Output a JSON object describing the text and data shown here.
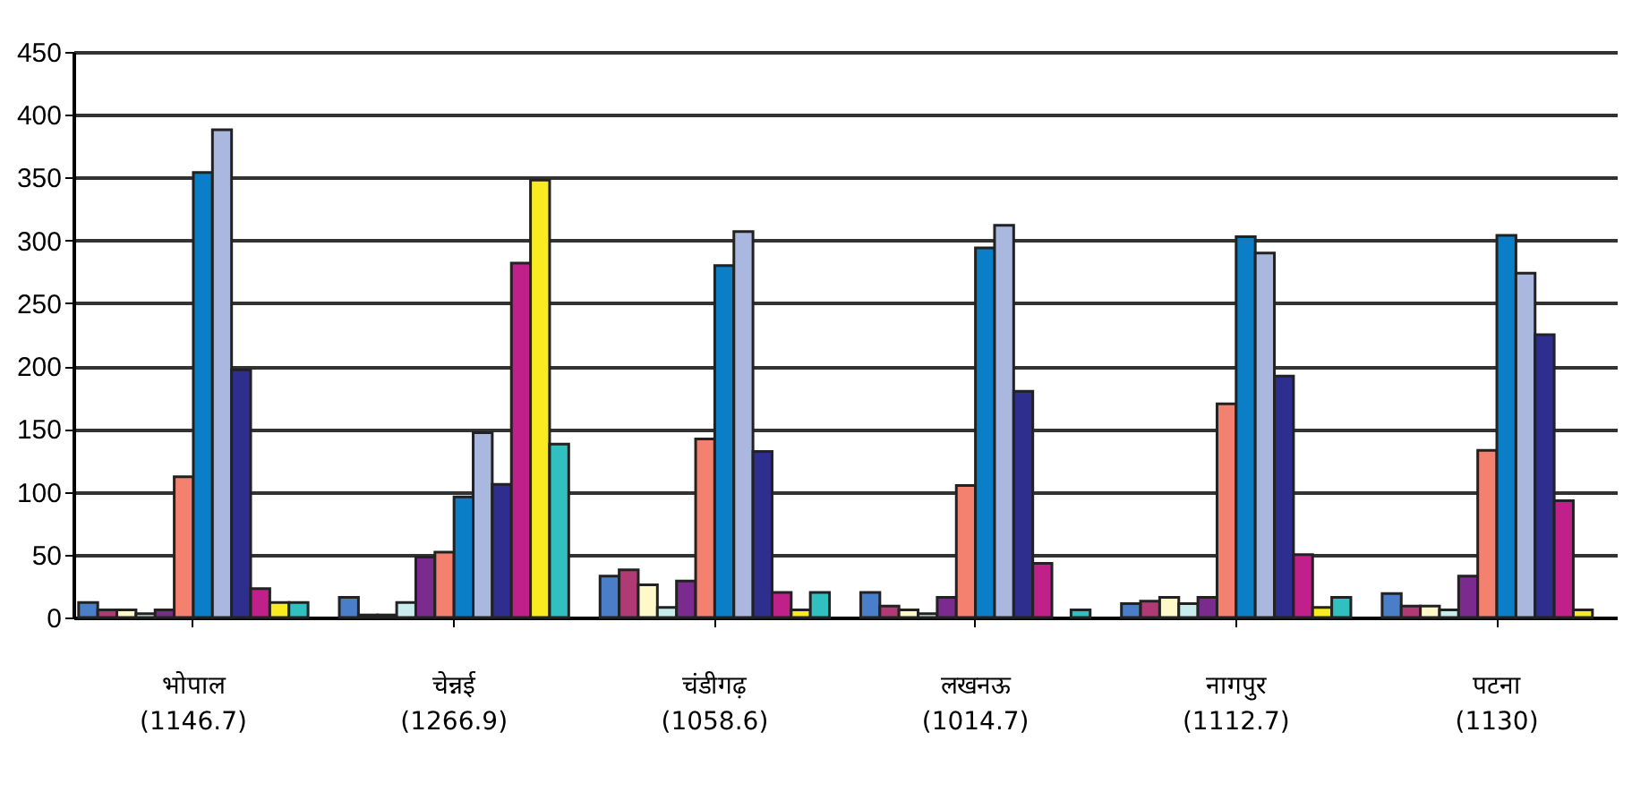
{
  "chart_data": {
    "type": "bar",
    "categories": [
      "भोपाल\n(1146.7)",
      "चेन्नई\n(1266.9)",
      "चंडीगढ़\n(1058.6)",
      "लखनऊ\n(1014.7)",
      "नागपुर\n(1112.7)",
      "पटना\n(1130)"
    ],
    "series": [
      {
        "color": "#4a7ec8",
        "values": [
          12,
          16,
          33,
          20,
          11,
          19
        ]
      },
      {
        "color": "#b03a74",
        "values": [
          6,
          2,
          38,
          9,
          13,
          9
        ]
      },
      {
        "color": "#fff8c8",
        "values": [
          6,
          2,
          26,
          6,
          16,
          9
        ]
      },
      {
        "color": "#c8ecec",
        "values": [
          3,
          12,
          8,
          3,
          11,
          6
        ]
      },
      {
        "color": "#7b2a8e",
        "values": [
          6,
          48,
          29,
          16,
          16,
          33
        ]
      },
      {
        "color": "#f48070",
        "values": [
          112,
          52,
          142,
          105,
          170,
          133
        ]
      },
      {
        "color": "#0a7ec6",
        "values": [
          354,
          96,
          280,
          294,
          303,
          304
        ]
      },
      {
        "color": "#aab8e0",
        "values": [
          388,
          147,
          307,
          312,
          290,
          274
        ]
      },
      {
        "color": "#2e2e8e",
        "values": [
          197,
          106,
          132,
          180,
          192,
          225
        ]
      },
      {
        "color": "#c0208a",
        "values": [
          23,
          282,
          20,
          43,
          50,
          93
        ]
      },
      {
        "color": "#f8ec20",
        "values": [
          12,
          348,
          6,
          null,
          8,
          6
        ]
      },
      {
        "color": "#30c0c0",
        "values": [
          12,
          138,
          20,
          6,
          16,
          null
        ]
      }
    ],
    "ylim": [
      0,
      450
    ],
    "yticks": [
      0,
      50,
      100,
      150,
      200,
      250,
      300,
      350,
      400,
      450
    ],
    "grid": "y",
    "legend": false
  }
}
